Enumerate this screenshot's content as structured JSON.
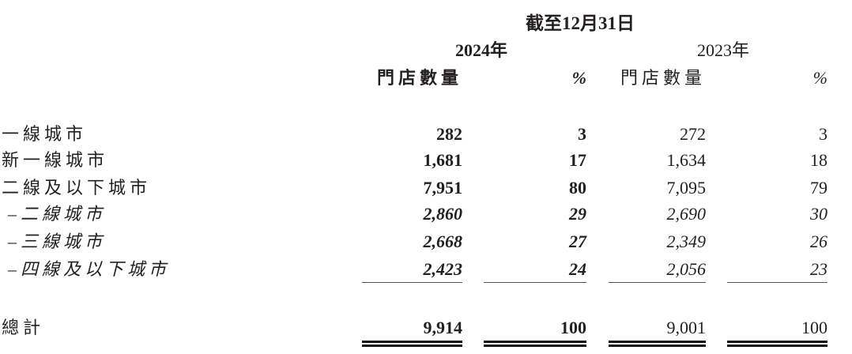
{
  "header": {
    "period": "截至12月31日",
    "years": [
      {
        "label": "2024年",
        "bold": true
      },
      {
        "label": "2023年",
        "bold": false
      }
    ],
    "columns": [
      "門店數量",
      "%",
      "門店數量",
      "%"
    ]
  },
  "rows": [
    {
      "label": "一線城市",
      "values": [
        "282",
        "3",
        "272",
        "3"
      ],
      "sub": false
    },
    {
      "label": "新一線城市",
      "values": [
        "1,681",
        "17",
        "1,634",
        "18"
      ],
      "sub": false
    },
    {
      "label": "二線及以下城市",
      "values": [
        "7,951",
        "80",
        "7,095",
        "79"
      ],
      "sub": false
    },
    {
      "label": "–二線城市",
      "values": [
        "2,860",
        "29",
        "2,690",
        "30"
      ],
      "sub": true
    },
    {
      "label": "–三線城市",
      "values": [
        "2,668",
        "27",
        "2,349",
        "26"
      ],
      "sub": true
    },
    {
      "label": "–四線及以下城市",
      "values": [
        "2,423",
        "24",
        "2,056",
        "23"
      ],
      "sub": true
    }
  ],
  "total": {
    "label": "總計",
    "values": [
      "9,914",
      "100",
      "9,001",
      "100"
    ]
  }
}
